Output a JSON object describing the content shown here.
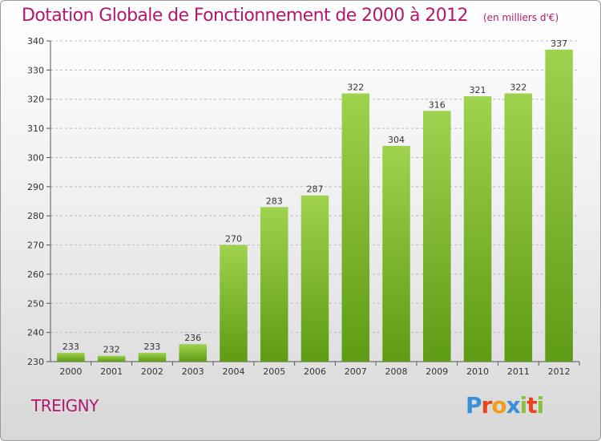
{
  "title": "Dotation Globale de Fonctionnement de 2000 à 2012",
  "subtitle": "(en milliers d'€)",
  "commune": "TREIGNY",
  "logo": {
    "letters": [
      "P",
      "r",
      "o",
      "x",
      "i",
      "t",
      "i"
    ],
    "colors": [
      "#3a8fd6",
      "#e8441a",
      "#f29c1f",
      "#3a8fd6",
      "#8bc13f",
      "#e8441a",
      "#8bc13f"
    ]
  },
  "colors": {
    "title": "#b0196e",
    "bar_top": "#9fd24f",
    "bar_bottom": "#5e9b14",
    "grid": "#bbbbbb",
    "axis_text": "#333333"
  },
  "chart_data": {
    "type": "bar",
    "categories": [
      "2000",
      "2001",
      "2002",
      "2003",
      "2004",
      "2005",
      "2006",
      "2007",
      "2008",
      "2009",
      "2010",
      "2011",
      "2012"
    ],
    "values": [
      233,
      232,
      233,
      236,
      270,
      283,
      287,
      322,
      304,
      316,
      321,
      322,
      337
    ],
    "ylim": [
      230,
      340
    ],
    "yticks": [
      230,
      240,
      250,
      260,
      270,
      280,
      290,
      300,
      310,
      320,
      330,
      340
    ],
    "grid": true,
    "data_labels": true
  }
}
